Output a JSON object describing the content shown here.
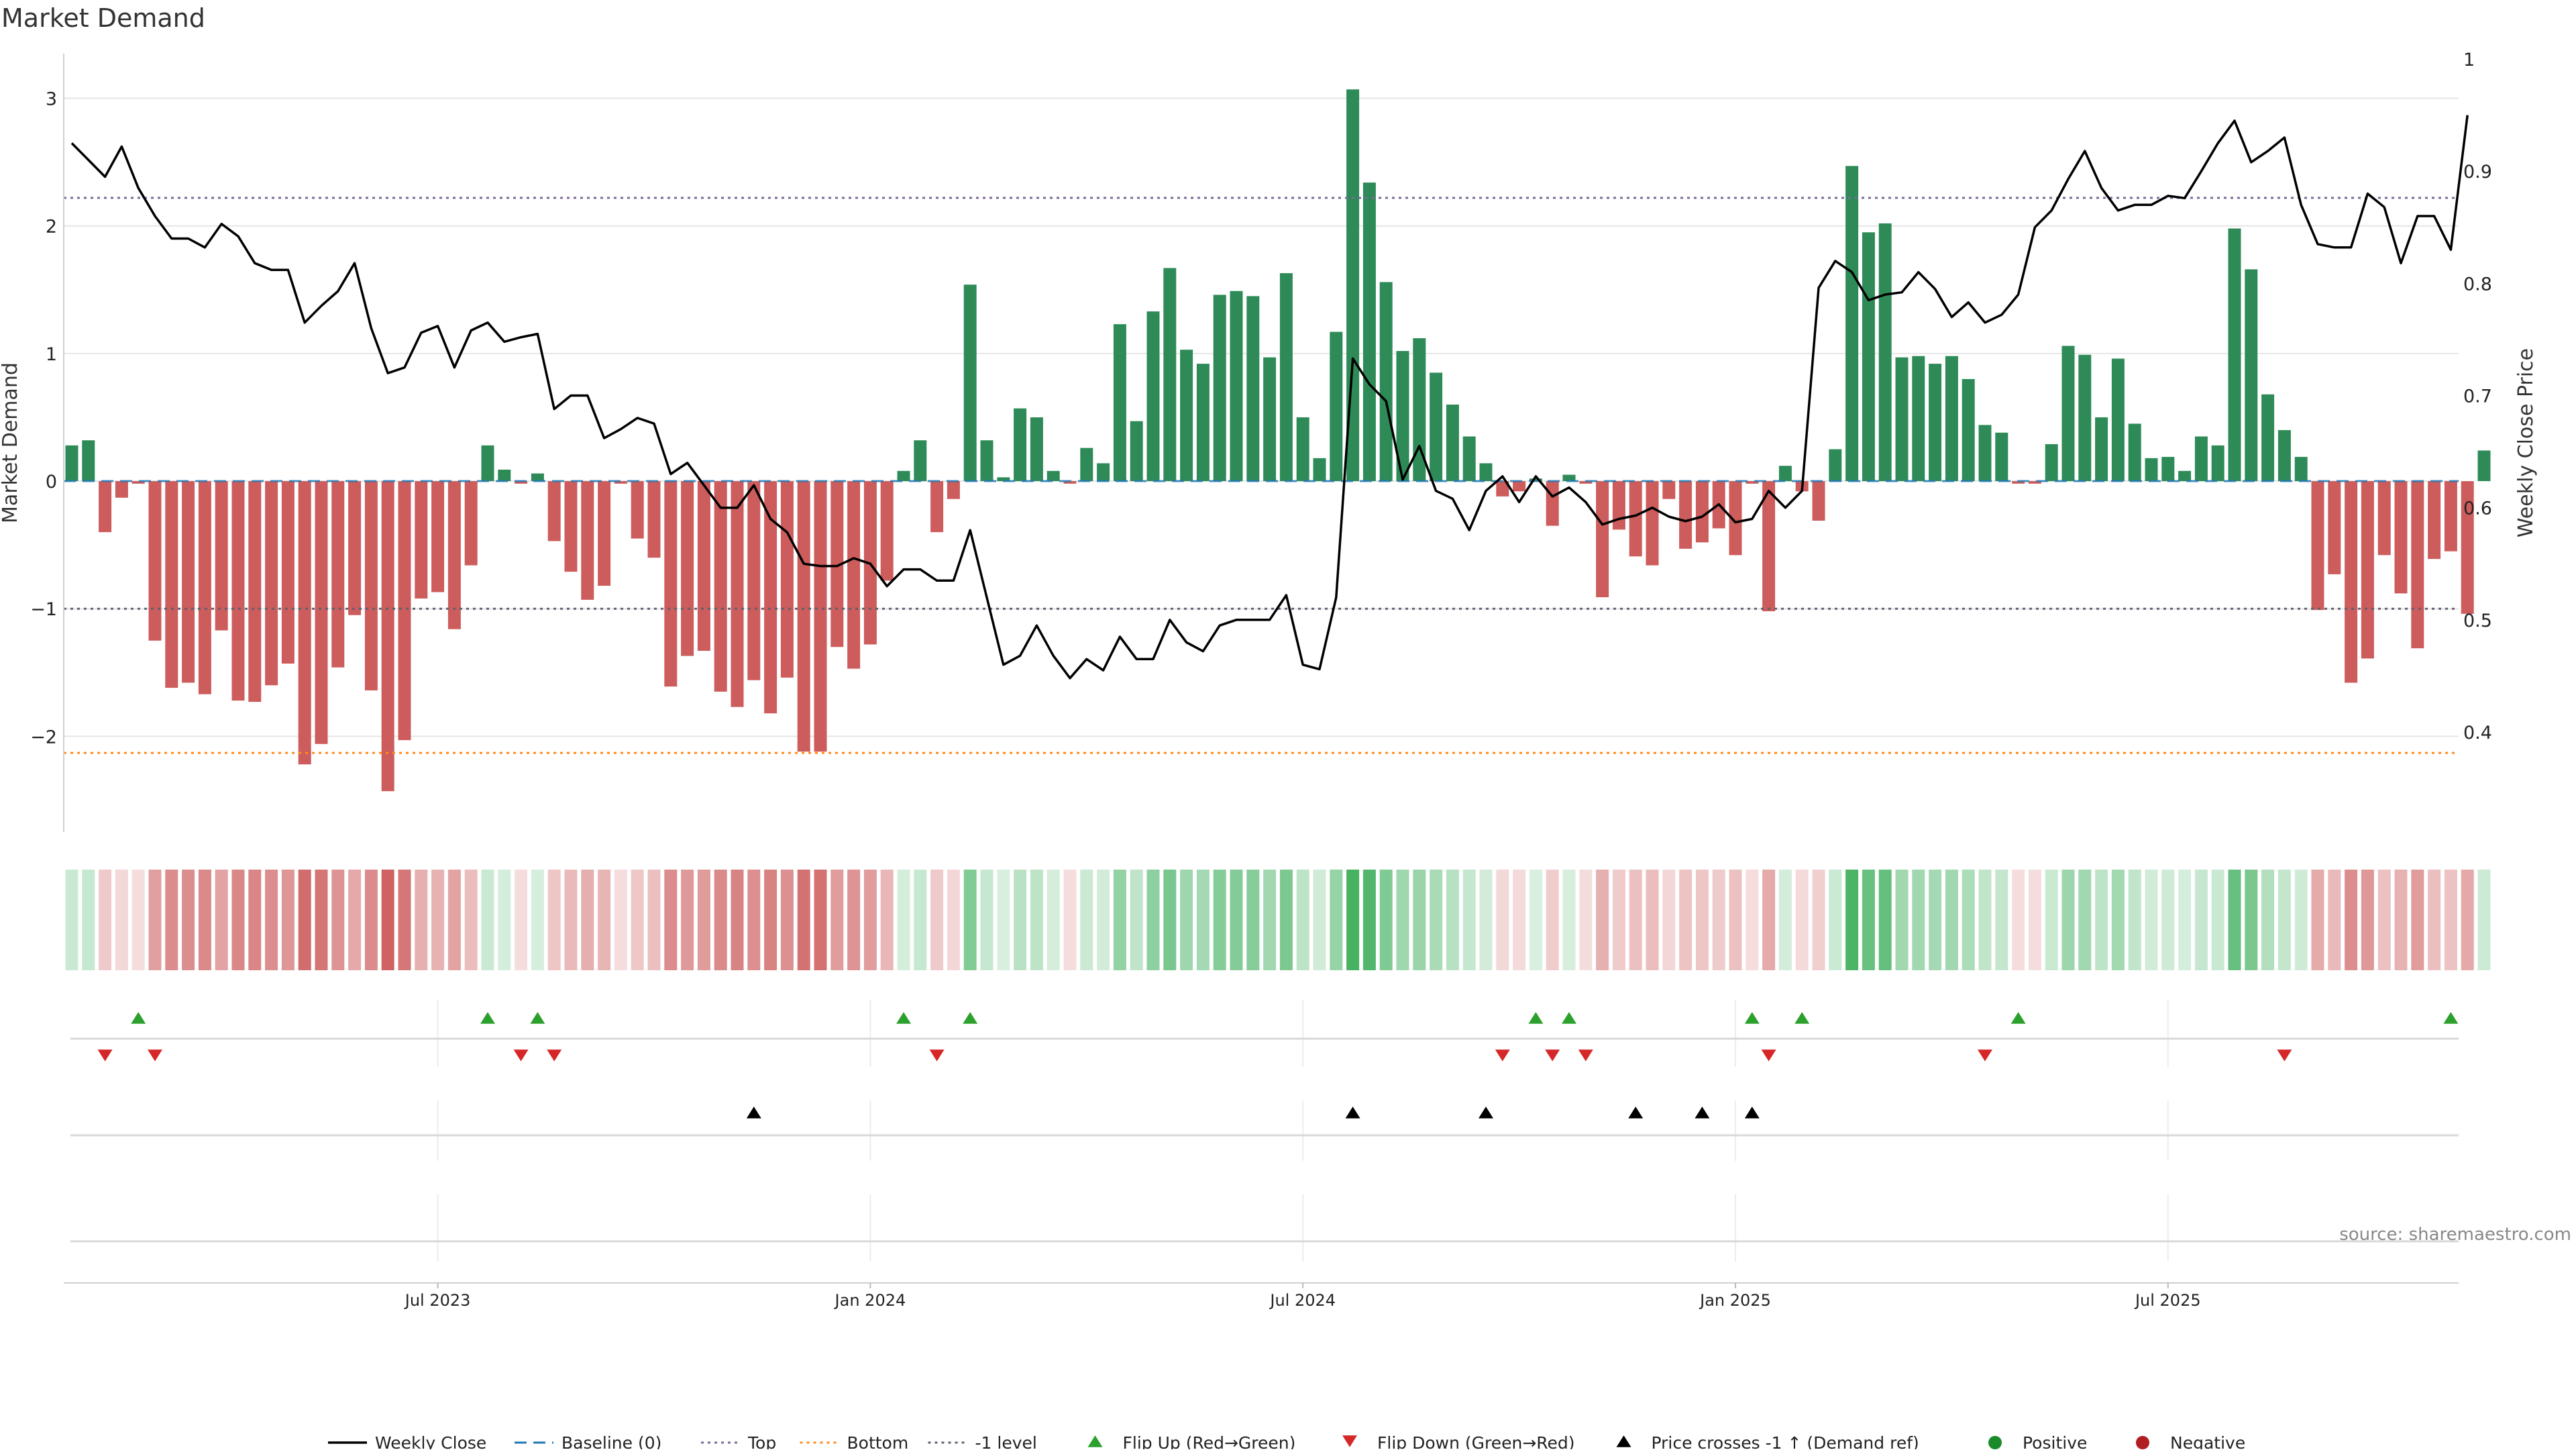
{
  "colors": {
    "positive": "#2e8b57",
    "negative": "#cd5c5c",
    "price_line": "#000000",
    "top_line": "#7b6a9a",
    "bottom_line": "#ff8c1a",
    "baseline": "#1f77b4",
    "minus_one": "#606070",
    "flip_up": "#2ca02c",
    "flip_down": "#d62728",
    "cross_marker": "#000000",
    "grid": "#e6e6e6"
  },
  "chart_data": {
    "type": "bar",
    "title": "Market Demand",
    "ylabel_left": "Market Demand",
    "ylabel_right": "Weekly Close Price",
    "left_yticks": [
      {
        "value": 3,
        "label": "3"
      },
      {
        "value": 2,
        "label": "2"
      },
      {
        "value": 1,
        "label": "1"
      },
      {
        "value": 0,
        "label": "0"
      },
      {
        "value": -1,
        "label": "−1"
      },
      {
        "value": -2,
        "label": "−2"
      }
    ],
    "right_yticks": [
      {
        "value": 1.0,
        "label": "1"
      },
      {
        "value": 0.9,
        "label": "0.9"
      },
      {
        "value": 0.8,
        "label": "0.8"
      },
      {
        "value": 0.7,
        "label": "0.7"
      },
      {
        "value": 0.6,
        "label": "0.6"
      },
      {
        "value": 0.5,
        "label": "0.5"
      },
      {
        "value": 0.4,
        "label": "0.4"
      }
    ],
    "ylim_left": [
      -2.75,
      3.35
    ],
    "ylim_right": [
      0.33,
      1.0
    ],
    "x_ticks": [
      {
        "week": 22,
        "label": "Jul 2023"
      },
      {
        "week": 48,
        "label": "Jan 2024"
      },
      {
        "week": 74,
        "label": "Jul 2024"
      },
      {
        "week": 100,
        "label": "Jan 2025"
      },
      {
        "week": 126,
        "label": "Jul 2025"
      }
    ],
    "reference_lines": {
      "top": 2.22,
      "bottom": -2.13,
      "minus_one": -1.0,
      "baseline": 0
    },
    "demand": [
      0.28,
      0.32,
      -0.4,
      -0.13,
      -0.02,
      -1.25,
      -1.62,
      -1.58,
      -1.67,
      -1.17,
      -1.72,
      -1.73,
      -1.6,
      -1.43,
      -2.22,
      -2.06,
      -1.46,
      -1.05,
      -1.64,
      -2.43,
      -2.03,
      -0.92,
      -0.87,
      -1.16,
      -0.66,
      0.28,
      0.09,
      -0.02,
      0.06,
      -0.47,
      -0.71,
      -0.93,
      -0.82,
      -0.02,
      -0.45,
      -0.6,
      -1.61,
      -1.37,
      -1.33,
      -1.65,
      -1.77,
      -1.56,
      -1.82,
      -1.54,
      -2.12,
      -2.12,
      -1.3,
      -1.47,
      -1.28,
      -0.78,
      0.08,
      0.32,
      -0.4,
      -0.14,
      1.54,
      0.32,
      0.03,
      0.57,
      0.5,
      0.08,
      -0.02,
      0.26,
      0.14,
      1.23,
      0.47,
      1.33,
      1.67,
      1.03,
      0.92,
      1.46,
      1.49,
      1.45,
      0.97,
      1.63,
      0.5,
      0.18,
      1.17,
      3.07,
      2.34,
      1.56,
      1.02,
      1.12,
      0.85,
      0.6,
      0.35,
      0.14,
      -0.12,
      -0.08,
      0.02,
      -0.35,
      0.05,
      -0.02,
      -0.91,
      -0.38,
      -0.59,
      -0.66,
      -0.14,
      -0.53,
      -0.48,
      -0.37,
      -0.58,
      -0.02,
      -1.02,
      0.12,
      -0.08,
      -0.31,
      0.25,
      2.47,
      1.95,
      2.02,
      0.97,
      0.98,
      0.92,
      0.98,
      0.8,
      0.44,
      0.38,
      -0.02,
      -0.02,
      0.29,
      1.06,
      0.99,
      0.5,
      0.96,
      0.45,
      0.18,
      0.19,
      0.08,
      0.35,
      0.28,
      1.98,
      1.66,
      0.68,
      0.4,
      0.19,
      -1.01,
      -0.73,
      -1.58,
      -1.39,
      -0.58,
      -0.88,
      -1.31,
      -0.61,
      -0.55,
      -1.04,
      0.24
    ],
    "weekly_close": [
      0.925,
      0.91,
      0.895,
      0.922,
      0.885,
      0.86,
      0.84,
      0.84,
      0.832,
      0.853,
      0.842,
      0.818,
      0.812,
      0.812,
      0.765,
      0.78,
      0.793,
      0.818,
      0.76,
      0.72,
      0.725,
      0.756,
      0.762,
      0.725,
      0.758,
      0.765,
      0.748,
      0.752,
      0.755,
      0.688,
      0.7,
      0.7,
      0.662,
      0.67,
      0.68,
      0.675,
      0.63,
      0.64,
      0.62,
      0.6,
      0.6,
      0.62,
      0.59,
      0.578,
      0.55,
      0.548,
      0.548,
      0.555,
      0.55,
      0.53,
      0.545,
      0.545,
      0.535,
      0.535,
      0.58,
      0.52,
      0.46,
      0.468,
      0.495,
      0.468,
      0.448,
      0.465,
      0.455,
      0.485,
      0.465,
      0.465,
      0.5,
      0.48,
      0.472,
      0.495,
      0.5,
      0.5,
      0.5,
      0.522,
      0.46,
      0.456,
      0.52,
      0.733,
      0.71,
      0.695,
      0.625,
      0.655,
      0.615,
      0.608,
      0.58,
      0.615,
      0.628,
      0.605,
      0.628,
      0.61,
      0.618,
      0.605,
      0.585,
      0.59,
      0.593,
      0.6,
      0.592,
      0.588,
      0.592,
      0.603,
      0.587,
      0.59,
      0.615,
      0.6,
      0.615,
      0.796,
      0.82,
      0.81,
      0.785,
      0.79,
      0.792,
      0.81,
      0.795,
      0.77,
      0.783,
      0.765,
      0.772,
      0.79,
      0.85,
      0.865,
      0.893,
      0.918,
      0.885,
      0.865,
      0.87,
      0.87,
      0.878,
      0.876,
      0.9,
      0.925,
      0.945,
      0.908,
      0.918,
      0.93,
      0.87,
      0.835,
      0.832,
      0.832,
      0.88,
      0.868,
      0.818,
      0.86,
      0.86,
      0.83,
      0.95
    ],
    "flip_up_weeks": [
      4,
      25,
      28,
      50,
      54,
      88,
      90,
      101,
      104,
      117,
      143
    ],
    "flip_down_weeks": [
      2,
      5,
      27,
      29,
      52,
      86,
      89,
      91,
      102,
      115,
      133
    ],
    "price_cross_weeks": [
      41,
      77,
      85,
      94,
      98,
      101
    ]
  },
  "legend": [
    {
      "key": "weekly_close",
      "label": "Weekly Close"
    },
    {
      "key": "baseline",
      "label": "Baseline (0)"
    },
    {
      "key": "top",
      "label": "Top"
    },
    {
      "key": "bottom",
      "label": "Bottom"
    },
    {
      "key": "minus_one",
      "label": "-1 level"
    },
    {
      "key": "flip_up",
      "label": "Flip Up (Red→Green)"
    },
    {
      "key": "flip_down",
      "label": "Flip Down (Green→Red)"
    },
    {
      "key": "price_cross",
      "label": "Price crosses -1 ↑ (Demand ref)"
    },
    {
      "key": "positive",
      "label": "Positive"
    },
    {
      "key": "negative",
      "label": "Negative"
    }
  ],
  "source_text": "source: sharemaestro.com"
}
